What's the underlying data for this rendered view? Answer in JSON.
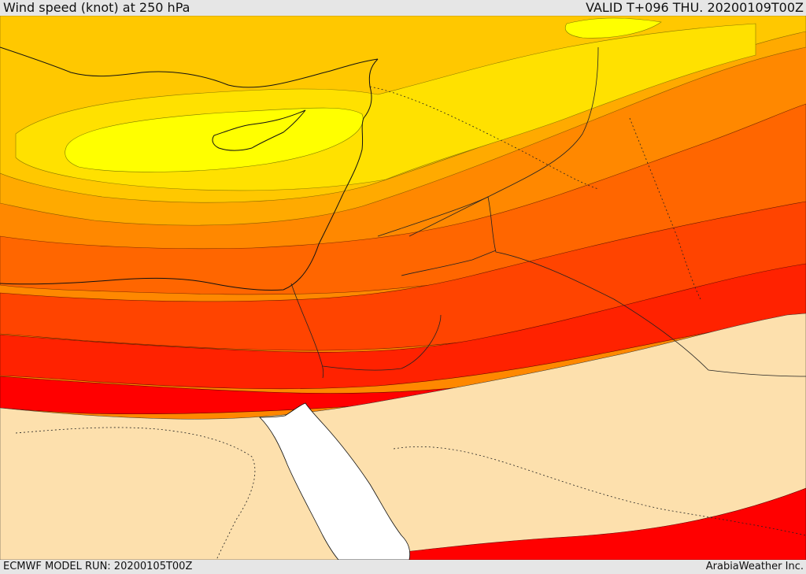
{
  "header": {
    "title": "Wind speed (knot) at 250 hPa",
    "valid": "VALID T+096 THU. 20200109T00Z"
  },
  "footer": {
    "model_run": "ECMWF MODEL RUN: 20200105T00Z",
    "credit": "ArabiaWeather Inc."
  },
  "palette": {
    "lightest_band": "#ffff00",
    "band_2": "#ffe100",
    "band_3": "#ffc800",
    "band_4": "#ffaa00",
    "band_5": "#ff8800",
    "band_6": "#ff6600",
    "band_7": "#ff4400",
    "band_8": "#ff2200",
    "band_9": "#ff0000",
    "calm_area": "#fde0ad",
    "sea": "#ffffff",
    "borders": "#222222"
  }
}
